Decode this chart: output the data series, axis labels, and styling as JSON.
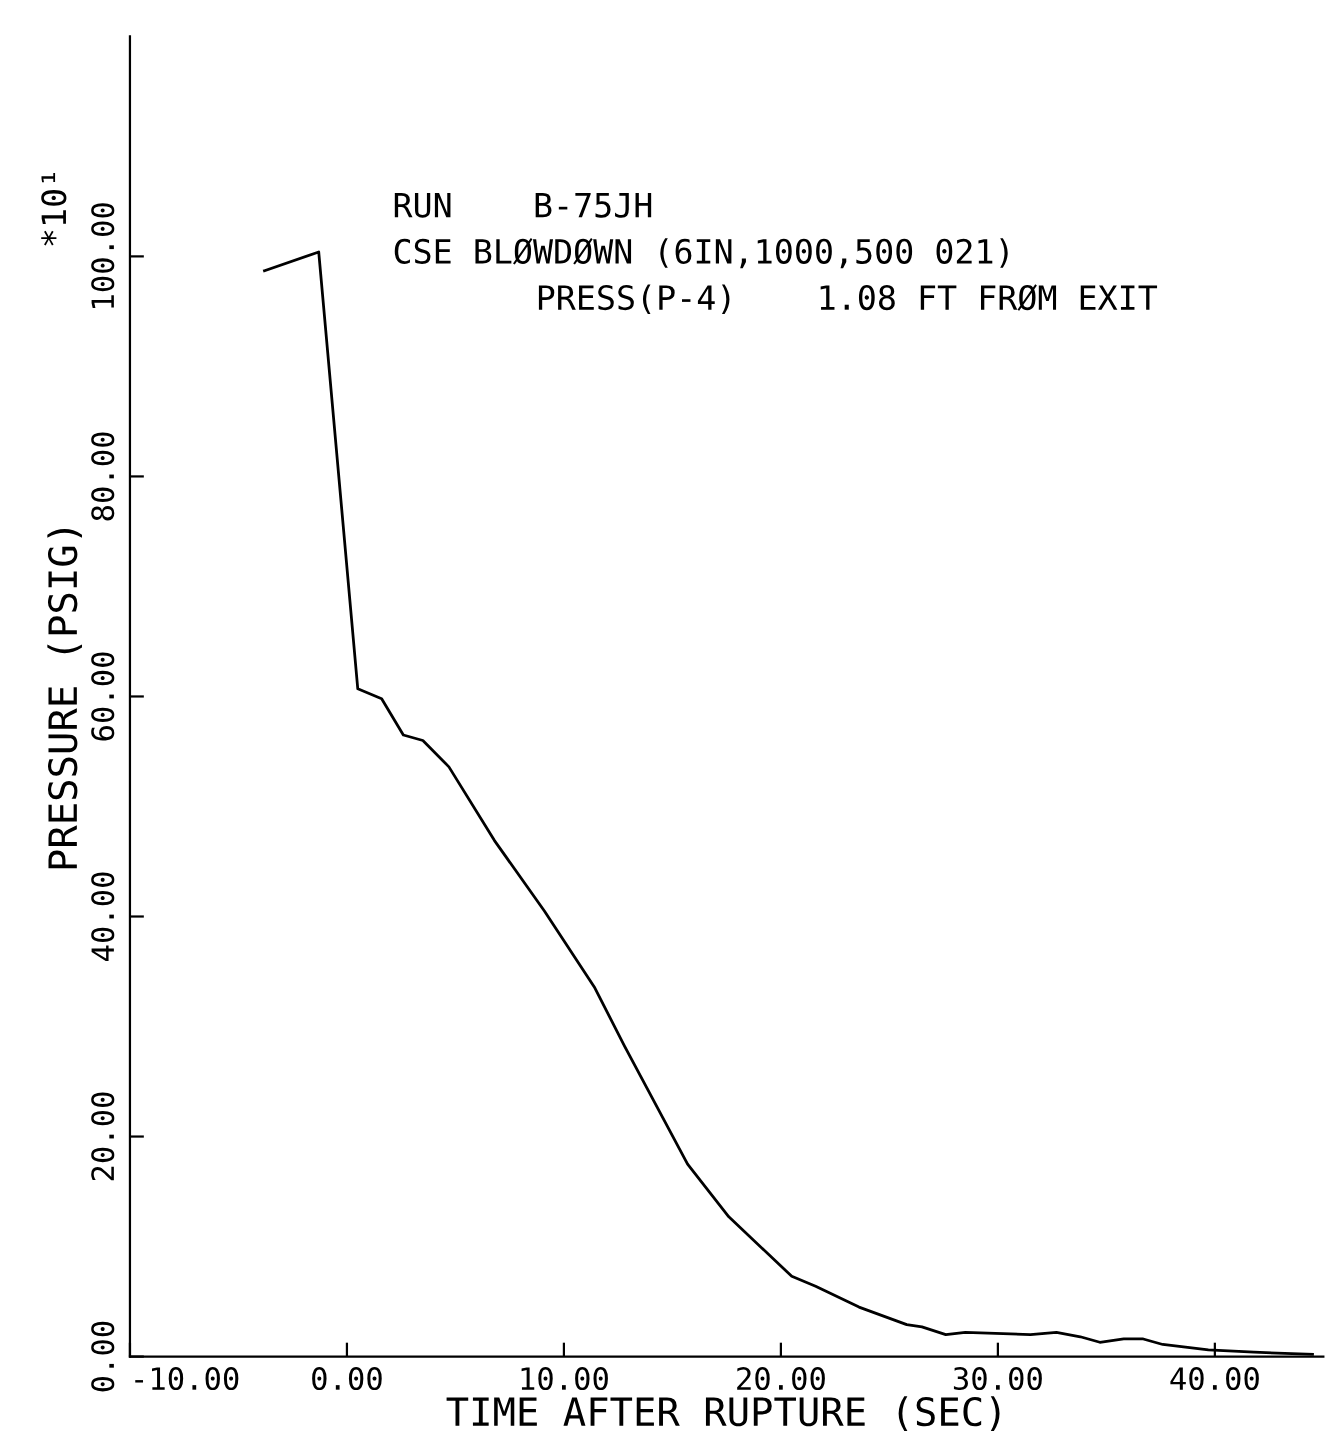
{
  "chart_data": {
    "type": "line",
    "xlabel": "TIME AFTER RUPTURE (SEC)",
    "ylabel": "PRESSURE (PSIG)",
    "annotations": [
      "RUN    B-75JH",
      "CSE BLØWDØWN (6IN,1000,500 021)",
      "PRESS(P-4)    1.08 FT FRØM EXIT",
      "*10¹"
    ],
    "series": [
      {
        "color": "#000000",
        "x": [
          -3.8,
          -1.3,
          0.5,
          1.6,
          2.6,
          3.5,
          4.7,
          6.8,
          9.1,
          11.4,
          12.8,
          15.7,
          17.6,
          20.5,
          21.6,
          23.6,
          25.8,
          26.5,
          27.6,
          28.5,
          31.5,
          32.7,
          33.8,
          34.7,
          35.8,
          36.7,
          37.6,
          39.7,
          41.8,
          44.5
        ],
        "values": [
          98.7,
          100.4,
          60.7,
          59.8,
          56.5,
          56,
          53.6,
          46.9,
          40.5,
          33.6,
          28.2,
          17.5,
          12.7,
          7.3,
          6.4,
          4.5,
          2.9,
          2.7,
          2.0,
          2.2,
          2.0,
          2.2,
          1.8,
          1.3,
          1.6,
          1.6,
          1.1,
          0.6,
          0.4,
          0.2
        ]
      }
    ],
    "xlim": [
      -10,
      45
    ],
    "ylim": [
      0,
      120
    ],
    "xticks": [
      {
        "value": -10,
        "label": "-10.00"
      },
      {
        "value": 0,
        "label": "0.00"
      },
      {
        "value": 10,
        "label": "10.00"
      },
      {
        "value": 20,
        "label": "20.00"
      },
      {
        "value": 30,
        "label": "30.00"
      },
      {
        "value": 40,
        "label": "40.00"
      }
    ],
    "yticks": [
      {
        "value": 0,
        "label": "0.00"
      },
      {
        "value": 20,
        "label": "20.00"
      },
      {
        "value": 40,
        "label": "40.00"
      },
      {
        "value": 60,
        "label": "60.00"
      },
      {
        "value": 80,
        "label": "80.00"
      },
      {
        "value": 100,
        "label": "100.00"
      }
    ],
    "grid": false,
    "legend": false
  }
}
